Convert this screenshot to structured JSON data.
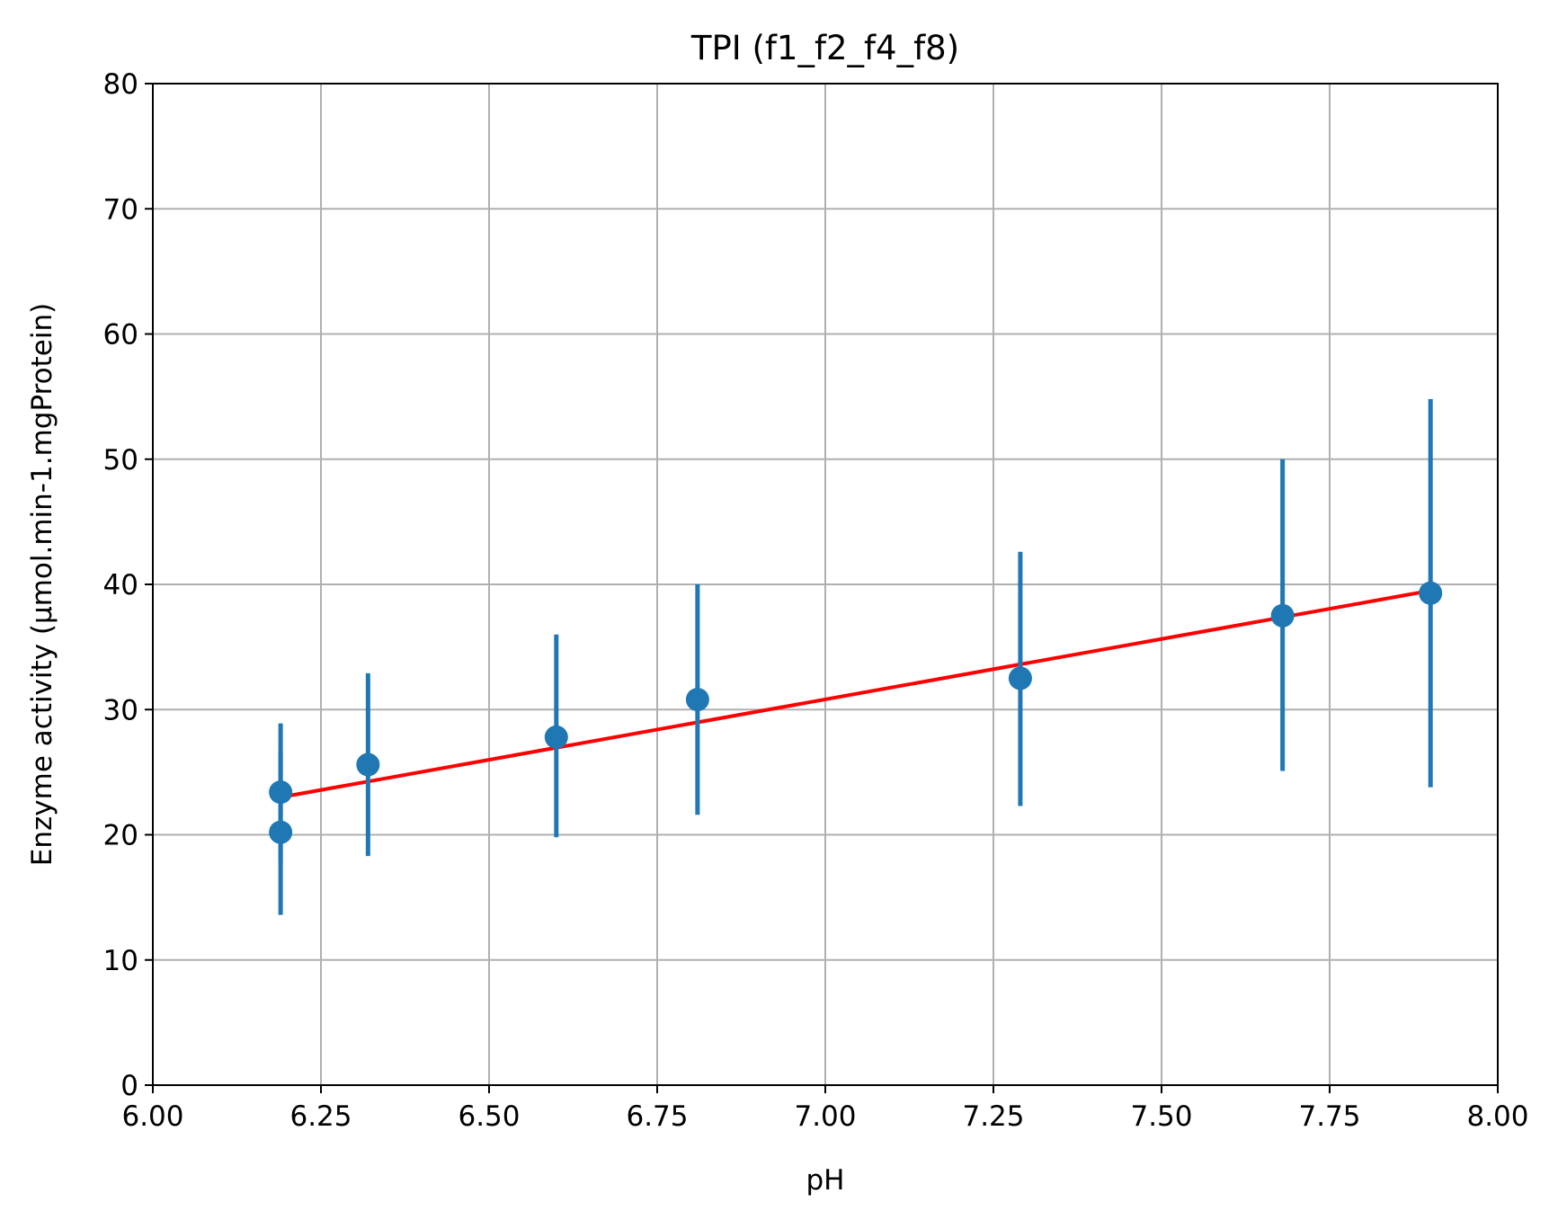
{
  "chart_data": {
    "type": "scatter",
    "title": "TPI (f1_f2_f4_f8)",
    "xlabel": "pH",
    "ylabel": "Enzyme activity (µmol.min-1.mgProtein)",
    "xlim": [
      6.0,
      8.0
    ],
    "ylim": [
      0,
      80
    ],
    "xticks": [
      "6.00",
      "6.25",
      "6.50",
      "6.75",
      "7.00",
      "7.25",
      "7.50",
      "7.75",
      "8.00"
    ],
    "yticks": [
      "0",
      "10",
      "20",
      "30",
      "40",
      "50",
      "60",
      "70",
      "80"
    ],
    "grid": true,
    "points": [
      {
        "x": 6.19,
        "y": 23.4,
        "lo": 17.8,
        "hi": 28.9
      },
      {
        "x": 6.19,
        "y": 20.2,
        "lo": 13.6,
        "hi": 26.7
      },
      {
        "x": 6.32,
        "y": 25.6,
        "lo": 18.3,
        "hi": 32.9
      },
      {
        "x": 6.6,
        "y": 27.8,
        "lo": 19.8,
        "hi": 36.0
      },
      {
        "x": 6.81,
        "y": 30.8,
        "lo": 21.6,
        "hi": 40.0
      },
      {
        "x": 7.29,
        "y": 32.5,
        "lo": 22.3,
        "hi": 42.6
      },
      {
        "x": 7.68,
        "y": 37.5,
        "lo": 25.1,
        "hi": 50.0
      },
      {
        "x": 7.9,
        "y": 39.3,
        "lo": 23.8,
        "hi": 54.8
      }
    ],
    "fit_line": {
      "x": [
        6.19,
        7.9
      ],
      "y": [
        23.0,
        39.5
      ]
    },
    "colors": {
      "points": "#1f77b4",
      "fit": "#ff0000",
      "grid": "#b0b0b0"
    }
  }
}
